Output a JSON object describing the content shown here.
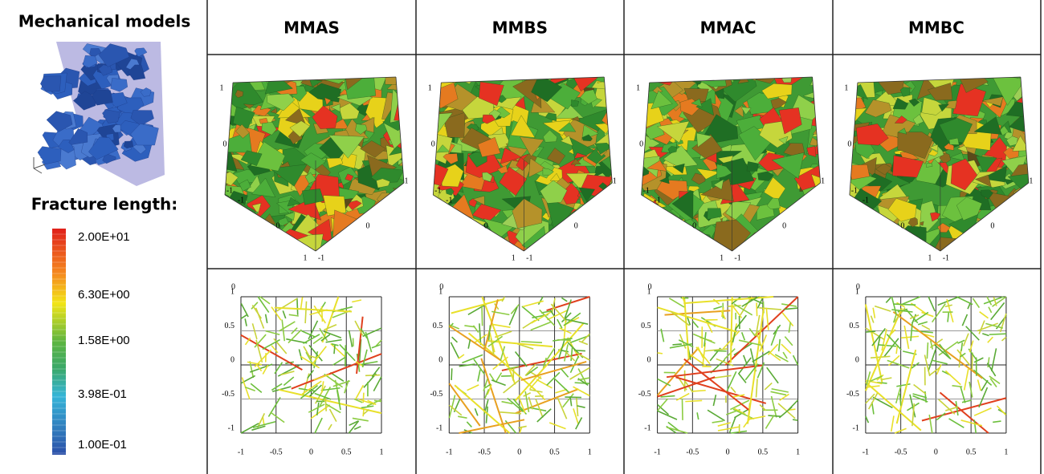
{
  "header": {
    "title": "Mechanical models",
    "models": [
      "MMAS",
      "MMBS",
      "MMAC",
      "MMBC"
    ]
  },
  "legend": {
    "title": "Fracture length:",
    "labels": [
      "2.00E+01",
      "6.30E+00",
      "1.58E+00",
      "3.98E-01",
      "1.00E-01"
    ]
  },
  "cube_ticks": [
    "1",
    "0",
    "-1"
  ],
  "plot_ticks": {
    "y": [
      "1",
      "0.5",
      "0",
      "-0.5",
      "-1"
    ],
    "x": [
      "-1",
      "-0.5",
      "0",
      "0.5",
      "1"
    ],
    "corner": "0"
  }
}
